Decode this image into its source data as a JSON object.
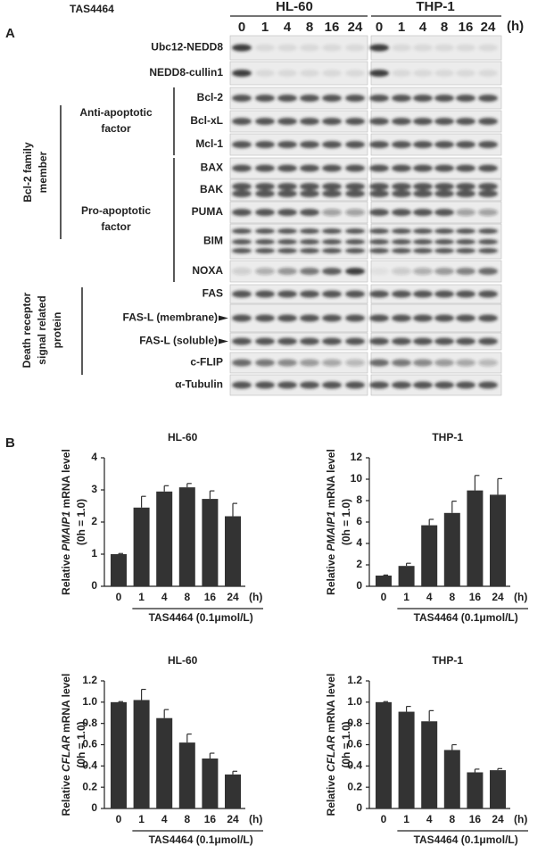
{
  "panel_a": {
    "label": "A",
    "treatment": "TAS4464",
    "cell_lines": [
      "HL-60",
      "THP-1"
    ],
    "time_points": [
      "0",
      "1",
      "4",
      "8",
      "16",
      "24"
    ],
    "time_unit": "(h)",
    "rows": [
      "Ubc12-NEDD8",
      "NEDD8-cullin1",
      "Bcl-2",
      "Bcl-xL",
      "Mcl-1",
      "BAX",
      "BAK",
      "PUMA",
      "BIM",
      "NOXA",
      "FAS",
      "FAS-L (membrane)",
      "FAS-L (soluble)",
      "c-FLIP",
      "α-Tubulin"
    ],
    "groups": {
      "anti_apoptotic": [
        "Anti-apoptotic",
        "factor"
      ],
      "pro_apoptotic": [
        "Pro-apoptotic",
        "factor"
      ],
      "bcl2_family": [
        "Bcl-2 family",
        "member"
      ],
      "death_receptor": [
        "Death receptor",
        "signal related",
        "protein"
      ]
    }
  },
  "panel_b": {
    "label": "B"
  },
  "chart_data": [
    {
      "type": "bar",
      "title": "HL-60",
      "ylabel": [
        "Relative ",
        "PMAIP1",
        " mRNA level"
      ],
      "ylabel2": "(0h  = 1.0)",
      "xlabel": "TAS4464 (0.1μmol/L)",
      "xunit": "(h)",
      "categories": [
        "0",
        "1",
        "4",
        "8",
        "16",
        "24"
      ],
      "values": [
        1,
        2.45,
        2.95,
        3.08,
        2.72,
        2.18
      ],
      "errors": [
        0.02,
        0.35,
        0.18,
        0.12,
        0.25,
        0.4
      ],
      "color": "#333333",
      "ylim": [
        0,
        4
      ],
      "yticks": [
        0,
        1,
        2,
        3,
        4
      ]
    },
    {
      "type": "bar",
      "title": "THP-1",
      "ylabel": [
        "Relative ",
        "PMAIP1",
        " mRNA level"
      ],
      "ylabel2": "(0h  = 1.0)",
      "xlabel": "TAS4464 (0.1μmol/L)",
      "xunit": "(h)",
      "categories": [
        "0",
        "1",
        "4",
        "8",
        "16",
        "24"
      ],
      "values": [
        1,
        1.9,
        5.7,
        6.85,
        8.95,
        8.55
      ],
      "errors": [
        0.05,
        0.25,
        0.55,
        1.1,
        1.4,
        1.5
      ],
      "color": "#333333",
      "ylim": [
        0,
        12
      ],
      "yticks": [
        0,
        2,
        4,
        6,
        8,
        10,
        12
      ]
    },
    {
      "type": "bar",
      "title": "HL-60",
      "ylabel": [
        "Relative ",
        "CFLAR",
        " mRNA level"
      ],
      "ylabel2": "(0h  = 1.0)",
      "xlabel": "TAS4464 (0.1μmol/L)",
      "xunit": "(h)",
      "categories": [
        "0",
        "1",
        "4",
        "8",
        "16",
        "24"
      ],
      "values": [
        1,
        1.02,
        0.85,
        0.62,
        0.47,
        0.32
      ],
      "errors": [
        0.005,
        0.1,
        0.08,
        0.08,
        0.05,
        0.03
      ],
      "color": "#333333",
      "ylim": [
        0,
        1.2
      ],
      "yticks": [
        0,
        0.2,
        0.4,
        0.6,
        0.8,
        {
          "value": 1,
          "label": "1.0"
        },
        1.2
      ]
    },
    {
      "type": "bar",
      "title": "THP-1",
      "ylabel": [
        "Relative ",
        "CFLAR",
        " mRNA level"
      ],
      "ylabel2": "(0h  = 1.0)",
      "xlabel": "TAS4464 (0.1μmol/L)",
      "xunit": "(h)",
      "categories": [
        "0",
        "1",
        "4",
        "8",
        "16",
        "24"
      ],
      "values": [
        1,
        0.91,
        0.82,
        0.55,
        0.34,
        0.36
      ],
      "errors": [
        0.005,
        0.05,
        0.1,
        0.05,
        0.03,
        0.015
      ],
      "color": "#333333",
      "ylim": [
        0,
        1.2
      ],
      "yticks": [
        0,
        0.2,
        0.4,
        0.6,
        0.8,
        {
          "value": 1,
          "label": "1.0"
        },
        1.2
      ]
    }
  ]
}
